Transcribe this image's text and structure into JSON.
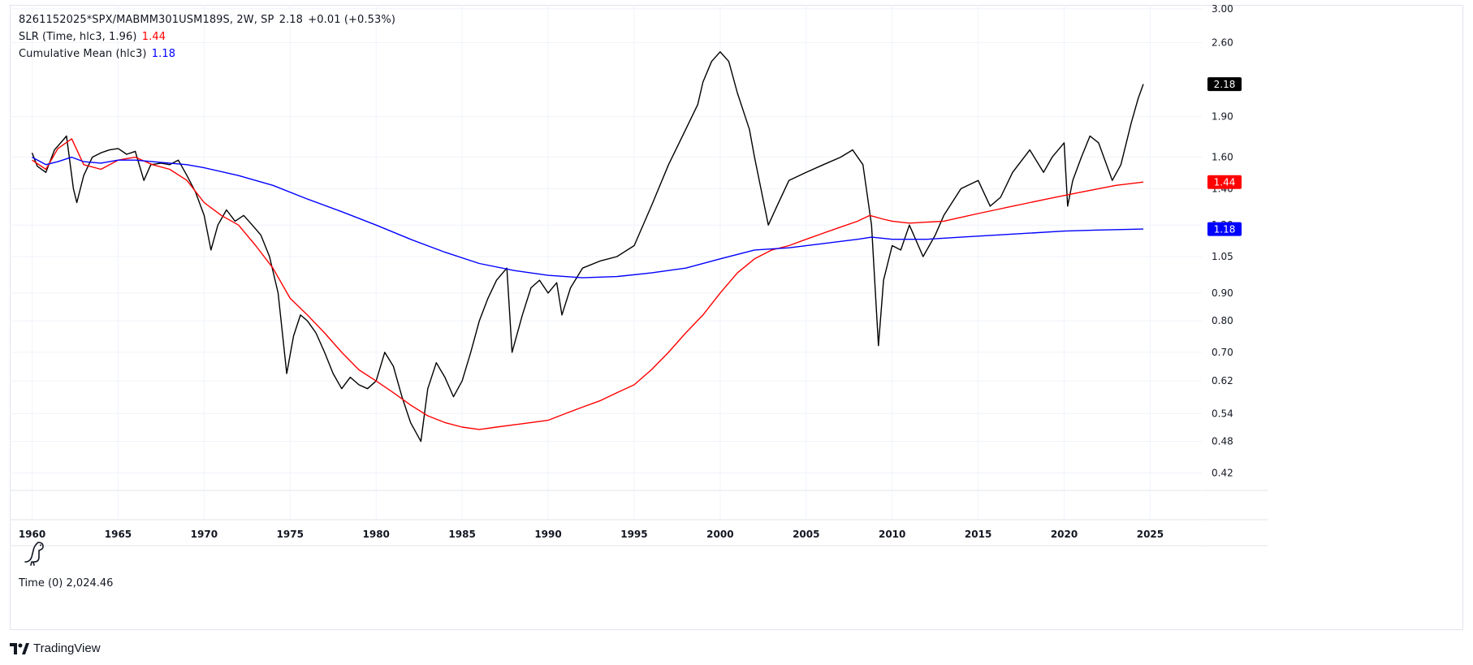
{
  "legend": {
    "symbol_line": "8261152025*SPX/MABMM301USM189S, 2W, SP",
    "symbol_value": "2.18",
    "symbol_change": "+0.01 (+0.53%)",
    "slr_label": "SLR (Time, hlc3, 1.96)",
    "slr_value": "1.44",
    "cm_label": "Cumulative Mean (hlc3)",
    "cm_value": "1.18"
  },
  "time_indicator": {
    "label": "Time (0)",
    "value": "2,024.46"
  },
  "brand": {
    "name": "TradingView"
  },
  "colors": {
    "price": "#000000",
    "slr": "#ff0000",
    "cm": "#0000ff",
    "grid": "#f0f3fa",
    "axis_text": "#131722"
  },
  "chart_data": {
    "type": "line",
    "title": "",
    "xlabel": "",
    "ylabel": "",
    "y_scale": "log",
    "grid": true,
    "xlim": [
      1958.7,
      2028
    ],
    "ylim": [
      0.39,
      3.05
    ],
    "x_ticks": [
      1960,
      1965,
      1970,
      1975,
      1980,
      1985,
      1990,
      1995,
      2000,
      2005,
      2010,
      2015,
      2020,
      2025
    ],
    "y_ticks": [
      3.0,
      2.6,
      1.9,
      1.6,
      1.4,
      1.2,
      1.05,
      0.9,
      0.8,
      0.7,
      0.62,
      0.54,
      0.48,
      0.42
    ],
    "y_tick_labels": [
      "3.00",
      "2.60",
      "1.90",
      "1.60",
      "1.40",
      "1.20",
      "1.05",
      "0.90",
      "0.80",
      "0.70",
      "0.62",
      "0.54",
      "0.48",
      "0.42"
    ],
    "x_tick_labels": [
      "1960",
      "1965",
      "1970",
      "1975",
      "1980",
      "1985",
      "1990",
      "1995",
      "2000",
      "2005",
      "2010",
      "2015",
      "2020",
      "2025"
    ],
    "last_value_labels": [
      {
        "value": 2.18,
        "text": "2.18",
        "color": "#000000"
      },
      {
        "value": 1.44,
        "text": "1.44",
        "color": "#ff0000"
      },
      {
        "value": 1.18,
        "text": "1.18",
        "color": "#0000ff"
      }
    ],
    "series": [
      {
        "name": "8261152025*SPX/MABMM301USM189S",
        "color": "#000000",
        "x": [
          1960.0,
          1960.3,
          1960.8,
          1961.3,
          1961.8,
          1962.0,
          1962.4,
          1962.6,
          1963.0,
          1963.5,
          1964.0,
          1964.5,
          1965.0,
          1965.5,
          1966.0,
          1966.5,
          1966.9,
          1967.5,
          1968.0,
          1968.5,
          1969.0,
          1969.5,
          1970.0,
          1970.4,
          1970.8,
          1971.3,
          1971.8,
          1972.3,
          1972.8,
          1973.3,
          1973.8,
          1974.3,
          1974.8,
          1975.2,
          1975.6,
          1976.0,
          1976.5,
          1977.0,
          1977.5,
          1978.0,
          1978.5,
          1979.0,
          1979.5,
          1980.0,
          1980.5,
          1981.0,
          1981.5,
          1982.0,
          1982.6,
          1983.0,
          1983.5,
          1984.0,
          1984.5,
          1985.0,
          1985.5,
          1986.0,
          1986.5,
          1987.0,
          1987.6,
          1987.9,
          1988.5,
          1989.0,
          1989.5,
          1990.0,
          1990.5,
          1990.8,
          1991.3,
          1992.0,
          1993.0,
          1994.0,
          1995.0,
          1996.0,
          1997.0,
          1998.0,
          1998.7,
          1999.0,
          1999.5,
          2000.0,
          2000.5,
          2001.0,
          2001.7,
          2002.0,
          2002.8,
          2003.3,
          2004.0,
          2005.0,
          2006.0,
          2007.0,
          2007.7,
          2008.3,
          2008.8,
          2009.2,
          2009.5,
          2010.0,
          2010.5,
          2011.0,
          2011.8,
          2012.5,
          2013.0,
          2014.0,
          2015.0,
          2015.7,
          2016.3,
          2017.0,
          2018.0,
          2018.8,
          2019.3,
          2020.0,
          2020.2,
          2020.5,
          2021.0,
          2021.5,
          2022.0,
          2022.8,
          2023.3,
          2023.9,
          2024.3,
          2024.6
        ],
        "values": [
          1.63,
          1.54,
          1.5,
          1.65,
          1.72,
          1.75,
          1.4,
          1.32,
          1.48,
          1.6,
          1.63,
          1.65,
          1.66,
          1.62,
          1.64,
          1.45,
          1.55,
          1.56,
          1.55,
          1.58,
          1.48,
          1.38,
          1.25,
          1.08,
          1.2,
          1.28,
          1.22,
          1.25,
          1.2,
          1.15,
          1.05,
          0.9,
          0.64,
          0.75,
          0.82,
          0.8,
          0.76,
          0.7,
          0.64,
          0.6,
          0.63,
          0.61,
          0.6,
          0.62,
          0.7,
          0.66,
          0.58,
          0.52,
          0.48,
          0.6,
          0.67,
          0.63,
          0.58,
          0.62,
          0.7,
          0.8,
          0.88,
          0.95,
          1.0,
          0.7,
          0.82,
          0.92,
          0.95,
          0.9,
          0.94,
          0.82,
          0.92,
          1.0,
          1.03,
          1.05,
          1.1,
          1.3,
          1.55,
          1.8,
          2.0,
          2.2,
          2.4,
          2.5,
          2.4,
          2.1,
          1.8,
          1.6,
          1.2,
          1.3,
          1.45,
          1.5,
          1.55,
          1.6,
          1.65,
          1.55,
          1.2,
          0.72,
          0.95,
          1.1,
          1.08,
          1.2,
          1.05,
          1.15,
          1.25,
          1.4,
          1.45,
          1.3,
          1.35,
          1.5,
          1.65,
          1.5,
          1.6,
          1.7,
          1.3,
          1.45,
          1.6,
          1.75,
          1.7,
          1.45,
          1.55,
          1.85,
          2.05,
          2.18
        ]
      },
      {
        "name": "SLR (Time, hlc3, 1.96)",
        "color": "#ff0000",
        "x": [
          1960.0,
          1960.8,
          1961.5,
          1962.3,
          1963.0,
          1964.0,
          1965.0,
          1966.0,
          1967.0,
          1968.0,
          1969.0,
          1970.0,
          1971.0,
          1972.0,
          1973.0,
          1974.0,
          1975.0,
          1976.0,
          1977.0,
          1978.0,
          1979.0,
          1980.0,
          1981.0,
          1982.0,
          1983.0,
          1984.0,
          1985.0,
          1986.0,
          1987.0,
          1988.0,
          1989.0,
          1990.0,
          1991.0,
          1992.0,
          1993.0,
          1994.0,
          1995.0,
          1996.0,
          1997.0,
          1998.0,
          1999.0,
          2000.0,
          2001.0,
          2002.0,
          2003.0,
          2004.0,
          2005.0,
          2006.0,
          2007.0,
          2008.0,
          2008.7,
          2009.5,
          2010.0,
          2011.0,
          2012.0,
          2013.0,
          2014.0,
          2015.0,
          2016.0,
          2017.0,
          2018.0,
          2019.0,
          2020.0,
          2021.0,
          2022.0,
          2023.0,
          2024.6
        ],
        "values": [
          1.58,
          1.52,
          1.66,
          1.73,
          1.55,
          1.52,
          1.58,
          1.6,
          1.55,
          1.52,
          1.45,
          1.32,
          1.25,
          1.2,
          1.1,
          1.0,
          0.88,
          0.82,
          0.76,
          0.7,
          0.65,
          0.62,
          0.59,
          0.56,
          0.535,
          0.52,
          0.51,
          0.505,
          0.51,
          0.515,
          0.52,
          0.525,
          0.54,
          0.555,
          0.57,
          0.59,
          0.61,
          0.65,
          0.7,
          0.76,
          0.82,
          0.9,
          0.98,
          1.04,
          1.08,
          1.1,
          1.13,
          1.16,
          1.19,
          1.22,
          1.25,
          1.23,
          1.22,
          1.21,
          1.215,
          1.22,
          1.24,
          1.26,
          1.28,
          1.3,
          1.32,
          1.34,
          1.36,
          1.38,
          1.4,
          1.42,
          1.44
        ]
      },
      {
        "name": "Cumulative Mean (hlc3)",
        "color": "#0000ff",
        "x": [
          1960.0,
          1960.8,
          1961.5,
          1962.3,
          1963.0,
          1964.0,
          1965.0,
          1966.0,
          1967.0,
          1968.0,
          1969.0,
          1970.0,
          1972.0,
          1974.0,
          1976.0,
          1978.0,
          1980.0,
          1982.0,
          1984.0,
          1986.0,
          1988.0,
          1990.0,
          1992.0,
          1994.0,
          1996.0,
          1998.0,
          2000.0,
          2002.0,
          2004.0,
          2006.0,
          2008.0,
          2008.8,
          2010.0,
          2012.0,
          2014.0,
          2016.0,
          2018.0,
          2020.0,
          2022.0,
          2024.6
        ],
        "values": [
          1.6,
          1.55,
          1.57,
          1.6,
          1.57,
          1.56,
          1.58,
          1.58,
          1.57,
          1.56,
          1.55,
          1.53,
          1.48,
          1.42,
          1.34,
          1.27,
          1.2,
          1.13,
          1.07,
          1.02,
          0.99,
          0.97,
          0.96,
          0.965,
          0.98,
          1.0,
          1.04,
          1.08,
          1.09,
          1.11,
          1.13,
          1.14,
          1.13,
          1.13,
          1.14,
          1.15,
          1.16,
          1.17,
          1.175,
          1.18
        ]
      }
    ]
  }
}
